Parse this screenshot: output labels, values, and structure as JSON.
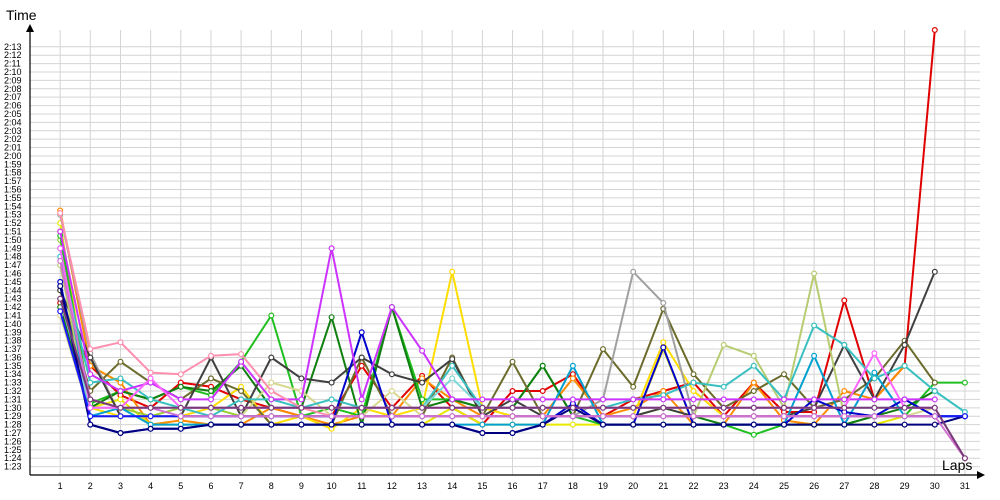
{
  "chart_data": {
    "type": "line",
    "xlabel": "Laps",
    "ylabel": "Time",
    "grid": true,
    "xlim": [
      0,
      31.5
    ],
    "ylim": [
      1382,
      1435
    ],
    "x_ticks": [
      1,
      2,
      3,
      4,
      5,
      6,
      7,
      8,
      9,
      10,
      11,
      12,
      13,
      14,
      15,
      16,
      17,
      18,
      19,
      20,
      21,
      22,
      23,
      24,
      25,
      26,
      27,
      28,
      29,
      30,
      31
    ],
    "y_tick_values": [
      1383,
      1384,
      1385,
      1386,
      1387,
      1388,
      1389,
      1390,
      1391,
      1392,
      1393,
      1394,
      1395,
      1396,
      1397,
      1398,
      1399,
      1400,
      1401,
      1402,
      1403,
      1404,
      1405,
      1406,
      1407,
      1408,
      1409,
      1410,
      1411,
      1412,
      1413,
      1414,
      1415,
      1416,
      1417,
      1418,
      1419,
      1420,
      1421,
      1422,
      1423,
      1424,
      1425,
      1426,
      1427,
      1428,
      1429,
      1430,
      1431,
      1432,
      1433
    ],
    "y_tick_labels": [
      "1:23",
      "1:24",
      "1:25",
      "1:26",
      "1:27",
      "1:28",
      "1:29",
      "1:30",
      "1:31",
      "1:32",
      "1:33",
      "1:34",
      "1:35",
      "1:36",
      "1:37",
      "1:38",
      "1:39",
      "1:40",
      "1:41",
      "1:42",
      "1:43",
      "1:44",
      "1:45",
      "1:46",
      "1:47",
      "1:48",
      "1:49",
      "1:50",
      "1:51",
      "1:52",
      "1:53",
      "1:54",
      "1:55",
      "1:56",
      "1:57",
      "1:58",
      "1:59",
      "2:00",
      "2:01",
      "2:02",
      "2:03",
      "2:04",
      "2:05",
      "2:06",
      "2:07",
      "2:08",
      "2:09",
      "2:10",
      "2:11",
      "2:12",
      "2:13"
    ],
    "series": [
      {
        "color": "#e00000",
        "values": [
          1402.5,
          1395,
          1391.5,
          1390,
          1393,
          1392.5,
          1391,
          1390,
          1389,
          1389,
          1395,
          1390,
          1393.8,
          1390,
          1388,
          1392,
          1392,
          1394,
          1389,
          1391,
          1392,
          1393,
          1389,
          1393,
          1389.5,
          1389.5,
          1402.8,
          1391,
          1395,
          1435
        ]
      },
      {
        "color": "#ff8c00",
        "values": [
          1413.5,
          1395,
          1393,
          1388,
          1388.5,
          1388,
          1388,
          1390,
          1389,
          1388,
          1389,
          1389,
          1393.5,
          1391,
          1389,
          1389,
          1389,
          1393.5,
          1389,
          1390,
          1392,
          1388,
          1388,
          1393,
          1388.5,
          1388,
          1392,
          1391,
          1395
        ]
      },
      {
        "color": "#ffdd00",
        "values": [
          1411,
          1390,
          1389,
          1389,
          1389,
          1390,
          1392.5,
          1388,
          1389,
          1387.5,
          1390,
          1389,
          1390,
          1406.2,
          1390,
          1389,
          1389,
          1389,
          1389,
          1389,
          1397.8,
          1392,
          1389,
          1389,
          1389,
          1389,
          1389,
          1389,
          1389,
          1389
        ]
      },
      {
        "color": "#e8e800",
        "values": [
          1412,
          1390,
          1391,
          1388,
          1388,
          1388,
          1388,
          1388,
          1388,
          1388,
          1388,
          1388,
          1388,
          1390,
          1388,
          1388,
          1388,
          1388,
          1388,
          1388,
          1397,
          1388,
          1388,
          1388,
          1388,
          1388,
          1388,
          1388,
          1389,
          1389,
          1389
        ]
      },
      {
        "color": "#9acd32",
        "values": [
          1410,
          1390,
          1390,
          1389,
          1390,
          1390,
          1389,
          1389,
          1389,
          1389,
          1389,
          1389,
          1389,
          1389,
          1389,
          1389,
          1389,
          1389,
          1389,
          1389,
          1390,
          1389,
          1389,
          1389,
          1389,
          1389,
          1389,
          1389,
          1389,
          1389
        ]
      },
      {
        "color": "#1fbf1f",
        "values": [
          1410.5,
          1390.5,
          1392,
          1391,
          1392.5,
          1391.5,
          1395.5,
          1401,
          1389,
          1390,
          1389,
          1402,
          1391,
          1391,
          1390,
          1390,
          1395,
          1389,
          1388,
          1388,
          1388,
          1388,
          1388,
          1386.8,
          1388,
          1388,
          1388,
          1389,
          1389,
          1393,
          1393
        ]
      },
      {
        "color": "#107f10",
        "values": [
          1402,
          1390,
          1392,
          1391,
          1392.5,
          1392,
          1395,
          1390,
          1390,
          1400.8,
          1388,
          1402,
          1390,
          1391,
          1390,
          1390,
          1395,
          1389,
          1389,
          1389,
          1389,
          1389,
          1388,
          1388,
          1388,
          1388,
          1388,
          1389,
          1390,
          1392
        ]
      },
      {
        "color": "#6b6b2b",
        "values": [
          1404,
          1392,
          1395.5,
          1393,
          1391,
          1393.5,
          1392,
          1388,
          1388,
          1388,
          1396,
          1389,
          1389,
          1396,
          1389,
          1395.5,
          1389,
          1389,
          1397,
          1392.5,
          1401.8,
          1394,
          1390,
          1392,
          1394,
          1390,
          1391,
          1393.5,
          1398,
          1393
        ]
      },
      {
        "color": "#a0a0a0",
        "values": [
          1413,
          1396.5,
          1389,
          1389,
          1389,
          1389,
          1389,
          1389,
          1389,
          1389,
          1389,
          1389,
          1389,
          1389,
          1389,
          1389,
          1389,
          1389,
          1391,
          1406.2,
          1402.5,
          1389,
          1389,
          1389,
          1389,
          1389,
          1389,
          1389,
          1389,
          1389
        ]
      },
      {
        "color": "#404040",
        "values": [
          1404,
          1396,
          1389,
          1389,
          1389,
          1396,
          1389,
          1396,
          1393.5,
          1393,
          1396,
          1394,
          1393,
          1395.8,
          1389,
          1391,
          1389,
          1389,
          1389,
          1389,
          1390,
          1389,
          1389,
          1389,
          1389,
          1390,
          1397.5,
          1391,
          1397.5,
          1406.2
        ]
      },
      {
        "color": "#b8cc72",
        "values": [
          1407,
          1389,
          1389,
          1389,
          1389,
          1389,
          1389,
          1389,
          1389,
          1389,
          1389,
          1389,
          1389,
          1389,
          1389,
          1389,
          1389,
          1389,
          1389,
          1389,
          1389,
          1389,
          1397.5,
          1396.2,
          1390,
          1406,
          1389,
          1389,
          1389,
          1389
        ]
      },
      {
        "color": "#d8d890",
        "values": [
          1401,
          1389,
          1389,
          1389,
          1389,
          1389,
          1389,
          1393,
          1392,
          1389,
          1389,
          1392,
          1389,
          1389,
          1389,
          1389,
          1389,
          1389,
          1389,
          1389,
          1389,
          1389,
          1389,
          1389,
          1389,
          1389,
          1389,
          1389,
          1389,
          1390
        ]
      },
      {
        "color": "#00a0d0",
        "values": [
          1409,
          1389,
          1390,
          1388,
          1388,
          1388,
          1388,
          1388,
          1388,
          1388,
          1388,
          1388,
          1388,
          1388,
          1388,
          1388,
          1388,
          1395,
          1388,
          1388,
          1388,
          1388,
          1388,
          1388,
          1388,
          1396.2,
          1388,
          1394.2,
          1389,
          1389,
          1389
        ]
      },
      {
        "color": "#3ac0c0",
        "values": [
          1408,
          1393,
          1393.5,
          1391,
          1390,
          1389,
          1391,
          1391,
          1390,
          1391,
          1390,
          1390,
          1390,
          1395,
          1390,
          1390,
          1390,
          1390,
          1390,
          1391,
          1391.5,
          1393,
          1392.5,
          1395,
          1391,
          1399.8,
          1397.5,
          1393.5,
          1395,
          1392,
          1389.5
        ]
      },
      {
        "color": "#7fd8d8",
        "values": [
          1403,
          1390,
          1390,
          1390,
          1390,
          1390,
          1390,
          1390,
          1390,
          1390,
          1390,
          1390,
          1390,
          1393.5,
          1390,
          1390,
          1390,
          1390,
          1390,
          1390,
          1390,
          1390,
          1390,
          1390,
          1390,
          1390,
          1390,
          1390,
          1390,
          1390
        ]
      },
      {
        "color": "#0000cc",
        "values": [
          1405,
          1388,
          1387,
          1387.5,
          1387.5,
          1388,
          1388,
          1388,
          1388,
          1388,
          1399,
          1388,
          1388,
          1388,
          1387,
          1387,
          1388,
          1390.5,
          1388,
          1388,
          1397.2,
          1388,
          1388,
          1388,
          1388,
          1391,
          1389.5,
          1389,
          1391,
          1389,
          1389
        ]
      },
      {
        "color": "#00007f",
        "values": [
          1404.5,
          1388,
          1387,
          1387.5,
          1387.5,
          1388,
          1388,
          1388,
          1388,
          1388,
          1388,
          1388,
          1388,
          1388,
          1387,
          1387,
          1388,
          1390,
          1388,
          1388,
          1388,
          1388,
          1388,
          1388,
          1388,
          1388,
          1388,
          1388,
          1388,
          1388,
          1389
        ]
      },
      {
        "color": "#1a1aff",
        "values": [
          1401.5,
          1389,
          1389,
          1389,
          1389,
          1389,
          1389,
          1389,
          1389,
          1389,
          1389,
          1389,
          1389,
          1389,
          1389,
          1389,
          1389,
          1389,
          1389,
          1389,
          1389,
          1389,
          1389,
          1389,
          1389,
          1389,
          1389,
          1389,
          1389,
          1389,
          1389
        ]
      },
      {
        "color": "#cc33ff",
        "values": [
          1411,
          1394,
          1392,
          1393,
          1391,
          1391,
          1395.5,
          1391,
          1391,
          1409,
          1391,
          1402,
          1396.8,
          1391,
          1391,
          1391,
          1391,
          1391,
          1391,
          1391,
          1391,
          1391,
          1391,
          1391,
          1391,
          1391,
          1391,
          1391,
          1391,
          1391
        ]
      },
      {
        "color": "#ff66ff",
        "values": [
          1409,
          1390,
          1390,
          1393.5,
          1390,
          1390,
          1390,
          1390,
          1390,
          1390,
          1390,
          1390,
          1390,
          1390,
          1390,
          1390,
          1390,
          1390,
          1390,
          1390,
          1390,
          1390,
          1390,
          1390,
          1390,
          1390,
          1390,
          1396.5,
          1390,
          1390
        ]
      },
      {
        "color": "#ff8faf",
        "values": [
          1413.2,
          1397,
          1397.8,
          1394.2,
          1394,
          1396.2,
          1396.4,
          1392,
          1390,
          1389,
          1389,
          1389,
          1389,
          1389,
          1389,
          1389,
          1389,
          1389,
          1389,
          1389,
          1389,
          1389,
          1389,
          1389,
          1389,
          1389,
          1389,
          1389,
          1389,
          1389
        ]
      },
      {
        "color": "#d070d0",
        "values": [
          1407.5,
          1391,
          1390,
          1390,
          1389,
          1389,
          1389,
          1389,
          1389,
          1389,
          1389,
          1389,
          1389,
          1389,
          1389,
          1389,
          1389,
          1389,
          1389,
          1389,
          1389,
          1389,
          1389,
          1389,
          1389,
          1389,
          1389,
          1389,
          1389,
          1389,
          1384
        ]
      },
      {
        "color": "#7a3a7a",
        "values": [
          1403,
          1391,
          1390,
          1390,
          1390,
          1390,
          1390,
          1390,
          1390,
          1390,
          1390,
          1390,
          1390,
          1390,
          1390,
          1390,
          1390,
          1390,
          1390,
          1390,
          1390,
          1390,
          1390,
          1390,
          1390,
          1390,
          1390,
          1390,
          1390,
          1390,
          1384
        ]
      }
    ]
  }
}
